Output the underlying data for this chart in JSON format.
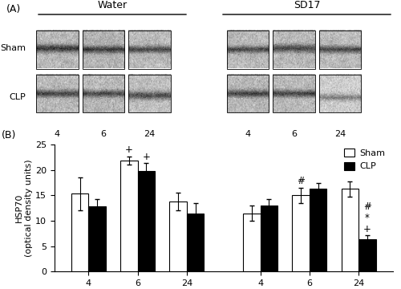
{
  "bar_groups": [
    {
      "label": "4",
      "group": "Water",
      "sham": 15.3,
      "clp": 12.8,
      "sham_err": 3.3,
      "clp_err": 1.5
    },
    {
      "label": "6",
      "group": "Water",
      "sham": 21.8,
      "clp": 19.8,
      "sham_err": 0.8,
      "clp_err": 1.5
    },
    {
      "label": "24",
      "group": "Water",
      "sham": 13.8,
      "clp": 11.4,
      "sham_err": 1.8,
      "clp_err": 2.0
    },
    {
      "label": "4",
      "group": "SD17",
      "sham": 11.5,
      "clp": 13.0,
      "sham_err": 1.5,
      "clp_err": 1.2
    },
    {
      "label": "6",
      "group": "SD17",
      "sham": 15.0,
      "clp": 16.3,
      "sham_err": 1.5,
      "clp_err": 1.2
    },
    {
      "label": "24",
      "group": "SD17",
      "sham": 16.3,
      "clp": 6.4,
      "sham_err": 1.5,
      "clp_err": 0.8
    }
  ],
  "ylabel": "HSP70\n(optical density units)",
  "ylim": [
    0,
    25
  ],
  "yticks": [
    0,
    5,
    10,
    15,
    20,
    25
  ],
  "sham_color": "#ffffff",
  "clp_color": "#000000",
  "bar_edge_color": "#000000",
  "bar_width": 0.35,
  "group_labels": [
    "Water",
    "SD17"
  ],
  "time_labels": [
    "4",
    "6",
    "24"
  ],
  "legend_sham": "Sham",
  "legend_clp": "CLP",
  "water_centers": [
    0.5,
    1.5,
    2.5
  ],
  "sd17_centers": [
    4.0,
    5.0,
    6.0
  ],
  "xlim": [
    -0.2,
    6.7
  ]
}
